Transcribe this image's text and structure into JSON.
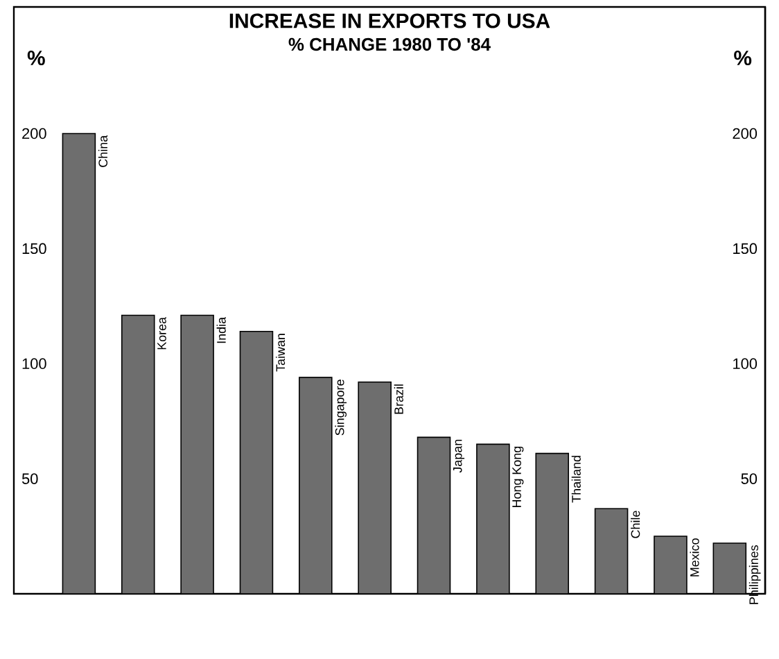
{
  "chart_data": {
    "type": "bar",
    "title": "INCREASE IN EXPORTS TO USA",
    "subtitle": "% CHANGE 1980 TO '84",
    "ylabel": "%",
    "y2label": "%",
    "categories": [
      "China",
      "Korea",
      "India",
      "Taiwan",
      "Singapore",
      "Brazil",
      "Japan",
      "Hong Kong",
      "Thailand",
      "Chile",
      "Mexico",
      "Philippines"
    ],
    "values": [
      200,
      121,
      121,
      114,
      94,
      92,
      68,
      65,
      61,
      37,
      25,
      22
    ],
    "color": "#6e6e6e",
    "ylim": [
      0,
      255
    ],
    "yticks": [
      50,
      100,
      150,
      200
    ],
    "y2lim": [
      0,
      255
    ],
    "y2ticks": [
      50,
      100,
      150,
      200
    ],
    "grid": false
  }
}
